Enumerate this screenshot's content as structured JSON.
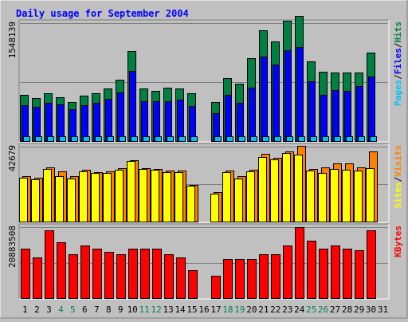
{
  "chart_data": {
    "type": "bar",
    "title": "Daily usage for September 2004",
    "categories": [
      "1",
      "2",
      "3",
      "4",
      "5",
      "6",
      "7",
      "8",
      "9",
      "10",
      "11",
      "12",
      "13",
      "14",
      "15",
      "16",
      "17",
      "18",
      "19",
      "20",
      "21",
      "22",
      "23",
      "24",
      "25",
      "26",
      "27",
      "28",
      "29",
      "30",
      "31"
    ],
    "weekend_days": [
      "4",
      "5",
      "11",
      "12",
      "18",
      "19",
      "25",
      "26"
    ],
    "panels": [
      {
        "id": "hits",
        "axis_max_label": "1548139",
        "ymax": 1548139,
        "legend": [
          "Pages",
          "/",
          "Files",
          "/",
          "Hits"
        ],
        "series": [
          {
            "name": "Hits",
            "color": "#008040",
            "values": [
              604000,
              562000,
              630000,
              572000,
              510000,
              592000,
              630000,
              688000,
              804000,
              1187000,
              688000,
              656000,
              702000,
              688000,
              630000,
              0,
              510000,
              822000,
              750000,
              1084000,
              1450000,
              1310000,
              1578000,
              1644000,
              1050000,
              908000,
              900000,
              900000,
              900000,
              1166000,
              0
            ]
          },
          {
            "name": "Files",
            "color": "#0000ff",
            "values": [
              468000,
              452000,
              500000,
              476000,
              416000,
              468000,
              500000,
              556000,
              640000,
              922000,
              524000,
              524000,
              524000,
              540000,
              460000,
              0,
              370000,
              610000,
              500000,
              696000,
              1106000,
              1005000,
              1192000,
              1238000,
              780000,
              610000,
              668000,
              656000,
              726000,
              846000,
              0
            ]
          },
          {
            "name": "Pages",
            "color": "#00c0ff",
            "values": [
              62000,
              62000,
              62000,
              62000,
              62000,
              62000,
              62000,
              62000,
              62000,
              62000,
              62000,
              62000,
              62000,
              62000,
              62000,
              0,
              62000,
              62000,
              62000,
              62000,
              62000,
              62000,
              62000,
              62000,
              62000,
              62000,
              62000,
              62000,
              62000,
              62000,
              0
            ]
          }
        ]
      },
      {
        "id": "visits",
        "axis_max_label": "42679",
        "ymax": 42679,
        "legend": [
          "Sites",
          "/",
          "Visits"
        ],
        "series": [
          {
            "name": "Visits",
            "color": "#ff8000",
            "values": [
              26000,
              25000,
              31000,
              28500,
              26000,
              29500,
              28000,
              28500,
              30500,
              35000,
              30500,
              30000,
              29000,
              29000,
              21000,
              0,
              17000,
              29000,
              26000,
              29500,
              38500,
              36500,
              40000,
              43000,
              30000,
              31000,
              33000,
              33000,
              31000,
              40000,
              0
            ]
          },
          {
            "name": "Sites",
            "color": "#ffff00",
            "values": [
              25000,
              24000,
              30000,
              26000,
              24500,
              28500,
              27500,
              27500,
              29500,
              34500,
              30000,
              29500,
              28000,
              28000,
              20500,
              0,
              16000,
              28000,
              24500,
              28500,
              37000,
              35500,
              39000,
              38000,
              29000,
              27500,
              30000,
              29500,
              29000,
              30500,
              0
            ]
          }
        ]
      },
      {
        "id": "kbytes",
        "axis_max_label": "20883508",
        "ymax": 20883508,
        "legend": [
          "KBytes"
        ],
        "series": [
          {
            "name": "KBytes",
            "color": "#ff0000",
            "values": [
              14500000,
              12000000,
              20000000,
              16500000,
              13000000,
              15500000,
              14500000,
              13500000,
              13000000,
              14500000,
              14500000,
              14500000,
              13000000,
              12000000,
              8300000,
              0,
              6500000,
              11500000,
              11500000,
              11500000,
              13000000,
              13000000,
              15500000,
              21000000,
              17000000,
              14500000,
              15500000,
              14500000,
              14000000,
              20000000,
              0
            ]
          }
        ]
      }
    ],
    "colors": {
      "background": "#c0c0c0",
      "plot_bg": "#c0c0c0",
      "title": "#0000ff",
      "weekday_label": "#000000",
      "weekend_label": "#00805c",
      "axis_label": "#000000"
    }
  }
}
